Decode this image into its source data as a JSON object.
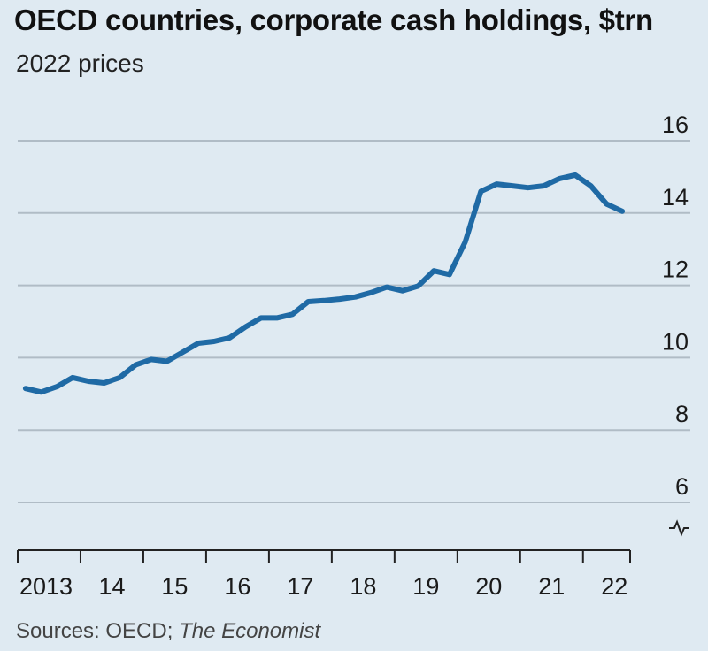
{
  "header": {
    "title": "OECD countries, corporate cash holdings, $trn",
    "subtitle": "2022 prices"
  },
  "footer": {
    "source_prefix": "Sources: OECD; ",
    "source_italic": "The Economist"
  },
  "colors": {
    "background": "#dfeaf2",
    "line": "#1f6aa5",
    "grid": "#b0bcc6",
    "axis": "#222222"
  },
  "chart_data": {
    "type": "line",
    "title": "OECD countries, corporate cash holdings, $trn",
    "subtitle": "2022 prices",
    "xlabel": "",
    "ylabel": "",
    "xlim": [
      2013.0,
      2022.75
    ],
    "ylim": [
      6,
      16
    ],
    "y_axis_break": true,
    "y_axis_position": "right",
    "grid": true,
    "legend": "none",
    "x_ticks": [
      {
        "value": 2013,
        "label": "2013"
      },
      {
        "value": 2014,
        "label": "14"
      },
      {
        "value": 2015,
        "label": "15"
      },
      {
        "value": 2016,
        "label": "16"
      },
      {
        "value": 2017,
        "label": "17"
      },
      {
        "value": 2018,
        "label": "18"
      },
      {
        "value": 2019,
        "label": "19"
      },
      {
        "value": 2020,
        "label": "20"
      },
      {
        "value": 2021,
        "label": "21"
      },
      {
        "value": 2022,
        "label": "22"
      }
    ],
    "y_ticks": [
      {
        "value": 6,
        "label": "6"
      },
      {
        "value": 8,
        "label": "8"
      },
      {
        "value": 10,
        "label": "10"
      },
      {
        "value": 12,
        "label": "12"
      },
      {
        "value": 14,
        "label": "14"
      },
      {
        "value": 16,
        "label": "16"
      }
    ],
    "series": [
      {
        "x": [
          2013.125,
          2013.375,
          2013.625,
          2013.875,
          2014.125,
          2014.375,
          2014.625,
          2014.875,
          2015.125,
          2015.375,
          2015.625,
          2015.875,
          2016.125,
          2016.375,
          2016.625,
          2016.875,
          2017.125,
          2017.375,
          2017.625,
          2017.875,
          2018.125,
          2018.375,
          2018.625,
          2018.875,
          2019.125,
          2019.375,
          2019.625,
          2019.875,
          2020.125,
          2020.375,
          2020.625,
          2020.875,
          2021.125,
          2021.375,
          2021.625,
          2021.875,
          2022.125,
          2022.375,
          2022.625
        ],
        "values": [
          9.15,
          9.05,
          9.2,
          9.45,
          9.35,
          9.3,
          9.45,
          9.8,
          9.95,
          9.9,
          10.15,
          10.4,
          10.45,
          10.55,
          10.85,
          11.1,
          11.1,
          11.2,
          11.55,
          11.58,
          11.62,
          11.68,
          11.8,
          11.95,
          11.85,
          11.98,
          12.4,
          12.3,
          13.2,
          14.6,
          14.8,
          14.75,
          14.7,
          14.75,
          14.95,
          15.05,
          14.75,
          14.25,
          14.05
        ]
      }
    ]
  }
}
